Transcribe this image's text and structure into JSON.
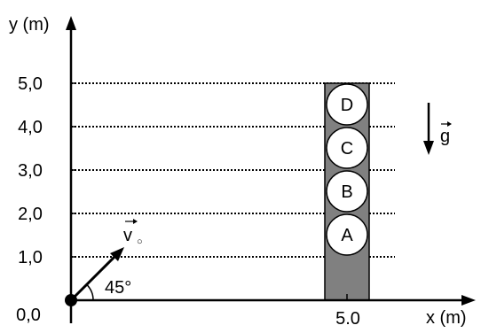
{
  "axes": {
    "x_label": "x (m)",
    "y_label": "y (m)",
    "origin_label": "0,0",
    "x_tick_label": "5.0",
    "y_tick_labels": [
      "1,0",
      "2,0",
      "3,0",
      "4,0",
      "5,0"
    ]
  },
  "vectors": {
    "velocity_label": "v",
    "velocity_subscript": "○",
    "angle_label": "45°",
    "gravity_label": "g"
  },
  "tower": {
    "circles": [
      "A",
      "B",
      "C",
      "D"
    ]
  }
}
